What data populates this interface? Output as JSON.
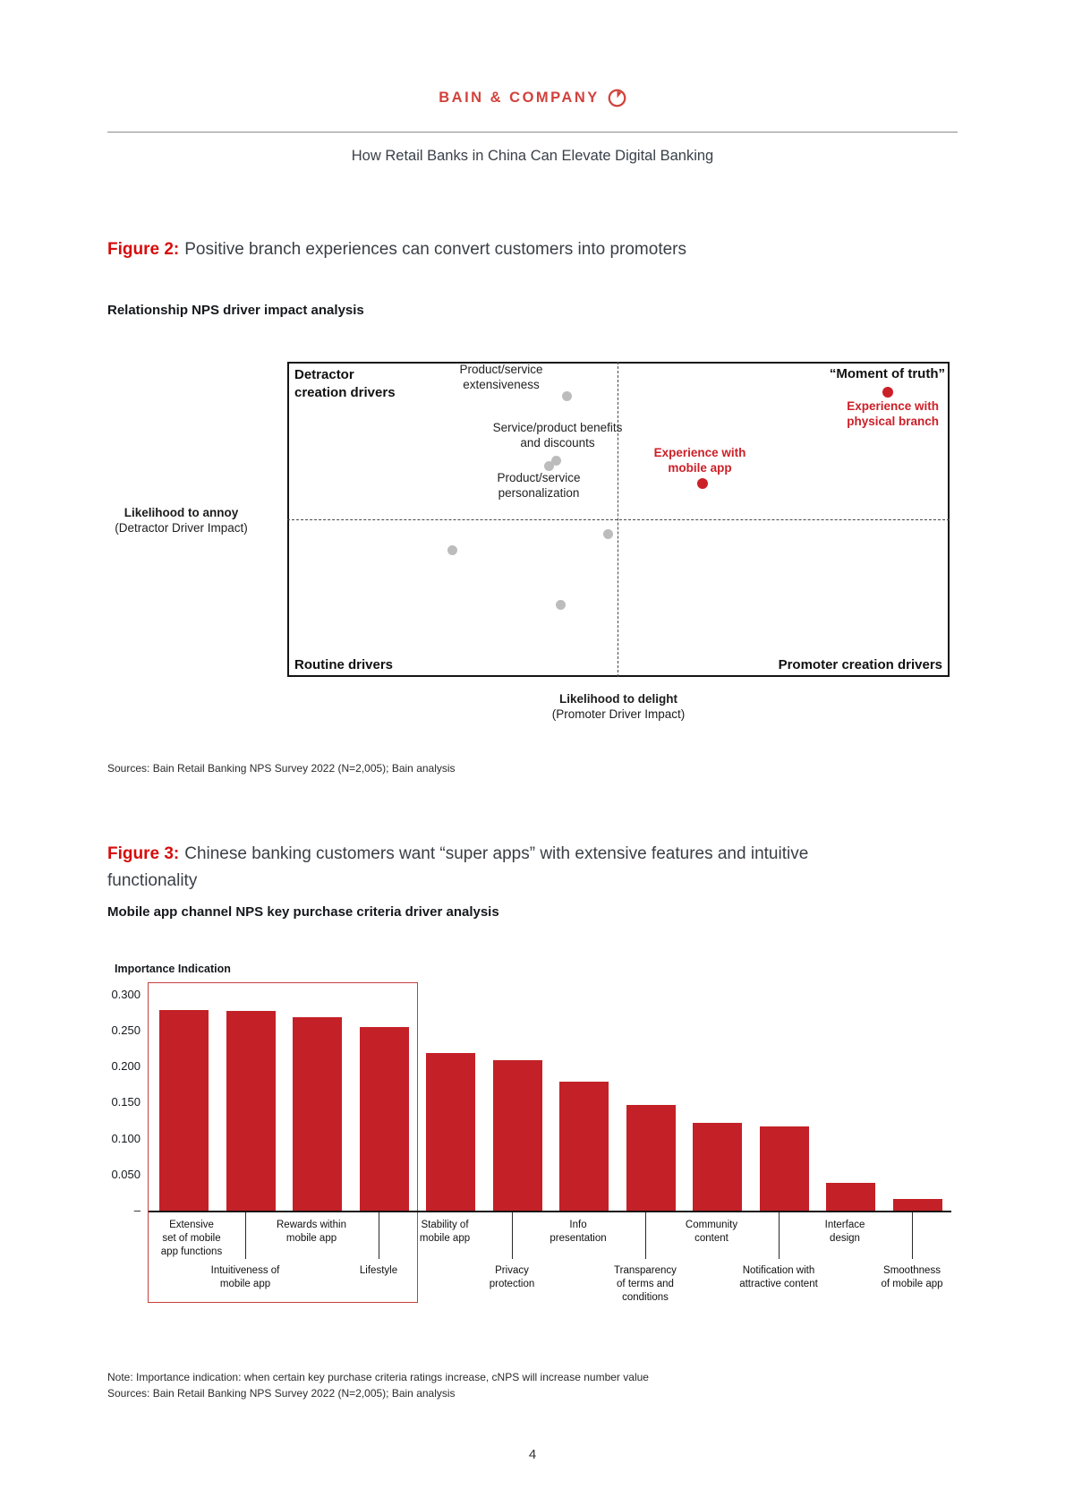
{
  "page": {
    "number": "4"
  },
  "header": {
    "brand": "BAIN & COMPANY",
    "logo_icon": "compass-clock-icon",
    "doc_title": "How Retail Banks in China Can Elevate Digital Banking"
  },
  "colors": {
    "bain_red_text": "#cc2028",
    "bar_red": "#c32127",
    "figure_label_red": "#d60c0c",
    "gray_dot": "#bcbcbc"
  },
  "figure2": {
    "label": "Figure 2:",
    "title": "Positive branch experiences can convert customers into promoters",
    "subtitle": "Relationship NPS driver impact analysis",
    "quadrant_labels": {
      "top_left": "Detractor\ncreation drivers",
      "top_right": "“Moment of truth”",
      "bottom_left": "Routine drivers",
      "bottom_right": "Promoter creation drivers"
    },
    "point_labels": {
      "extensiveness": "Product/service\nextensiveness",
      "benefits": "Service/product benefits\nand discounts",
      "personalization": "Product/service\npersonalization",
      "mobile_app": "Experience with\nmobile app",
      "physical_branch": "Experience with\nphysical branch"
    },
    "y_axis_line1": "Likelihood to annoy",
    "y_axis_line2": "(Detractor Driver Impact)",
    "x_axis_line1": "Likelihood to delight",
    "x_axis_line2": "(Promoter Driver Impact)",
    "sources": "Sources: Bain Retail Banking NPS Survey 2022 (N=2,005); Bain analysis"
  },
  "figure3": {
    "label": "Figure 3:",
    "title": "Chinese banking customers want “super apps” with extensive features and intuitive functionality",
    "subtitle": "Mobile app channel NPS key purchase criteria driver analysis",
    "y_axis_title": "Importance Indication",
    "zero_tick": "–",
    "note": "Note: Importance indication: when certain key purchase criteria ratings increase, cNPS will increase number value",
    "sources": "Sources: Bain Retail Banking NPS Survey 2022 (N=2,005); Bain analysis"
  },
  "chart_data": [
    {
      "type": "scatter",
      "title": "Relationship NPS driver impact analysis",
      "xlabel": "Likelihood to delight (Promoter Driver Impact)",
      "ylabel": "Likelihood to annoy (Detractor Driver Impact)",
      "quadrants": [
        "Detractor creation drivers",
        "“Moment of truth”",
        "Routine drivers",
        "Promoter creation drivers"
      ],
      "axis_note": "no numeric scale shown; point positions normalized 0-1 within plot box, y measured upward",
      "points": [
        {
          "name": "Product/service extensiveness",
          "x": 0.42,
          "y": 0.895,
          "series": "gray"
        },
        {
          "name": "Service/product benefits and discounts",
          "x": 0.404,
          "y": 0.693,
          "series": "gray"
        },
        {
          "name": "Product/service personalization",
          "x": 0.392,
          "y": 0.676,
          "series": "gray"
        },
        {
          "name": "unlabeled-1",
          "x": 0.482,
          "y": 0.46,
          "series": "gray"
        },
        {
          "name": "unlabeled-2",
          "x": 0.247,
          "y": 0.409,
          "series": "gray"
        },
        {
          "name": "unlabeled-3",
          "x": 0.41,
          "y": 0.233,
          "series": "gray"
        },
        {
          "name": "Experience with mobile app",
          "x": 0.624,
          "y": 0.619,
          "series": "red"
        },
        {
          "name": "Experience with physical branch",
          "x": 0.904,
          "y": 0.909,
          "series": "red"
        }
      ]
    },
    {
      "type": "bar",
      "title": "Mobile app channel NPS key purchase criteria driver analysis",
      "xlabel": "",
      "ylabel": "Importance Indication",
      "ylim": [
        0,
        0.3
      ],
      "grid": false,
      "yticks": [
        "0.300",
        "0.250",
        "0.200",
        "0.150",
        "0.100",
        "0.050"
      ],
      "categories": [
        "Extensive\nset of mobile\napp functions",
        "Intuitiveness of\nmobile app",
        "Rewards within\nmobile app",
        "Lifestyle",
        "Stability of\nmobile app",
        "Privacy\nprotection",
        "Info\npresentation",
        "Transparency\nof terms and\nconditions",
        "Community\ncontent",
        "Notification with\nattractive content",
        "Interface\ndesign",
        "Smoothness\nof mobile app"
      ],
      "values": [
        0.28,
        0.278,
        0.27,
        0.256,
        0.22,
        0.21,
        0.18,
        0.148,
        0.123,
        0.118,
        0.04,
        0.018
      ],
      "highlight": "first four bars enclosed in red outline box"
    }
  ]
}
